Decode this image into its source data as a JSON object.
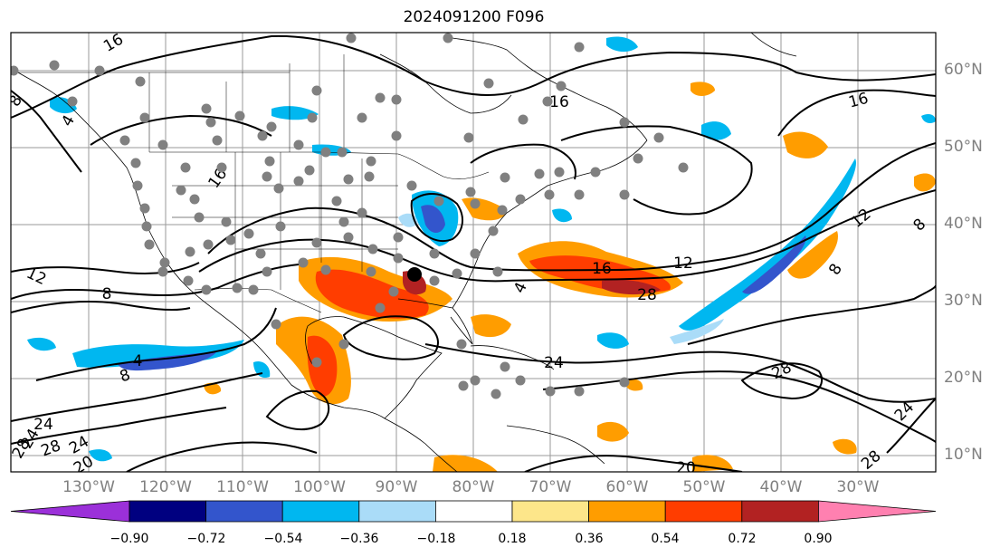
{
  "title": "2024091200 F096",
  "lat_labels": [
    "60°N",
    "50°N",
    "40°N",
    "30°N",
    "20°N",
    "10°N"
  ],
  "lon_labels": [
    "130°W",
    "120°W",
    "110°W",
    "100°W",
    "90°W",
    "80°W",
    "70°W",
    "60°W",
    "50°W",
    "40°W",
    "30°W"
  ],
  "colorbar": {
    "ticks": [
      "−0.90",
      "−0.72",
      "−0.54",
      "−0.36",
      "−0.18",
      "0.18",
      "0.36",
      "0.54",
      "0.72",
      "0.90"
    ],
    "low_extend_color": "#9b30d9",
    "colors": [
      "#000080",
      "#3355cc",
      "#00b7f0",
      "#aadcf8",
      "#ffffff",
      "#fde68a",
      "#ff9d00",
      "#ff3d00",
      "#b22222"
    ],
    "high_extend_color": "#ff80b0"
  },
  "contour_labels": [
    "8",
    "4",
    "16",
    "16",
    "16",
    "16",
    "12",
    "8",
    "4",
    "12",
    "8",
    "12",
    "16",
    "28",
    "24",
    "24",
    "28",
    "24",
    "4",
    "8",
    "8",
    "28",
    "24",
    "28",
    "24",
    "28",
    "20",
    "20"
  ],
  "colors": {
    "gridline": "#9a9a9a",
    "coastline": "#000000",
    "contour": "#000000",
    "station_marker": "#808080",
    "axis_label": "#808080"
  }
}
